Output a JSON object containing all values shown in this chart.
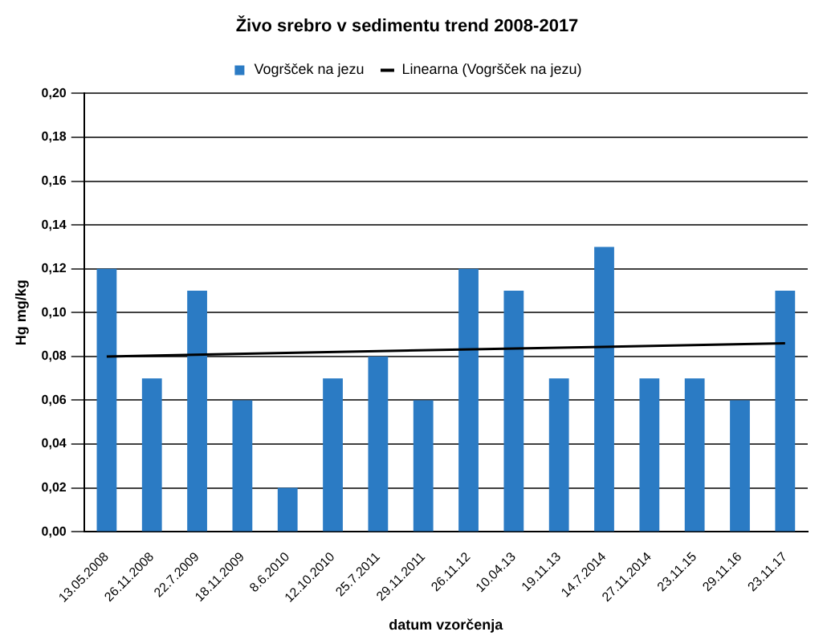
{
  "chart_data": {
    "type": "bar",
    "title": "Živo srebro v sedimentu trend 2008-2017",
    "xlabel": "datum vzorčenja",
    "ylabel": "Hg mg/kg",
    "categories": [
      "13.05.2008",
      "26.11.2008",
      "22.7.2009",
      "18.11.2009",
      "8.6.2010",
      "12.10.2010",
      "25.7.2011",
      "29.11.2011",
      "26.11.12",
      "10.04.13",
      "19.11.13",
      "14.7.2014",
      "27.11.2014",
      "23.11.15",
      "29.11.16",
      "23.11.17"
    ],
    "series": [
      {
        "name": "Vogršček na jezu",
        "color": "#2b7bc4",
        "values": [
          0.12,
          0.07,
          0.11,
          0.06,
          0.02,
          0.07,
          0.08,
          0.06,
          0.12,
          0.11,
          0.07,
          0.13,
          0.07,
          0.07,
          0.06,
          0.11
        ]
      },
      {
        "name": "Linearna (Vogršček na jezu)",
        "type": "line",
        "color": "#000000",
        "x": [
          "13.05.2008",
          "23.11.17"
        ],
        "values": [
          0.08,
          0.086
        ]
      }
    ],
    "ylim": [
      0,
      0.2
    ],
    "yticks": [
      {
        "value": 0,
        "label": "0,00"
      },
      {
        "value": 0.02,
        "label": "0,02"
      },
      {
        "value": 0.04,
        "label": "0,04"
      },
      {
        "value": 0.06,
        "label": "0,06"
      },
      {
        "value": 0.08,
        "label": "0,08"
      },
      {
        "value": 0.1,
        "label": "0,10"
      },
      {
        "value": 0.12,
        "label": "0,12"
      },
      {
        "value": 0.14,
        "label": "0,14"
      },
      {
        "value": 0.16,
        "label": "0,16"
      },
      {
        "value": 0.18,
        "label": "0,18"
      },
      {
        "value": 0.2,
        "label": "0,20"
      }
    ],
    "grid": "y",
    "legend": "top",
    "marker": "none"
  }
}
